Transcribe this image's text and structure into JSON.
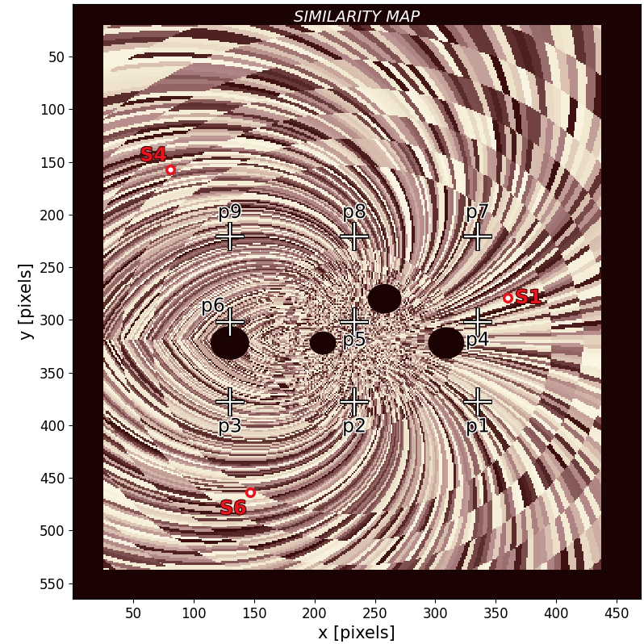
{
  "chart_data": {
    "type": "map",
    "title": "SIMILARITY MAP",
    "x_label": "x [pixels]",
    "y_label": "y [pixels]",
    "xlim": [
      0,
      470
    ],
    "ylim": [
      565,
      0
    ],
    "xticks": [
      50,
      100,
      150,
      200,
      250,
      300,
      350,
      400,
      450
    ],
    "yticks": [
      50,
      100,
      150,
      200,
      250,
      300,
      350,
      400,
      450,
      500,
      550
    ],
    "map_x": [
      25,
      437
    ],
    "map_y": [
      20,
      537
    ],
    "points": {
      "names": [
        "p1",
        "p2",
        "p3",
        "p4",
        "p5",
        "p6",
        "p7",
        "p8",
        "p9"
      ],
      "x": [
        335,
        233,
        130,
        335,
        233,
        130,
        335,
        233,
        130
      ],
      "y": [
        378,
        378,
        378,
        302,
        302,
        302,
        221,
        221,
        221
      ]
    },
    "sources": {
      "names": [
        "S1",
        "S4",
        "S6"
      ],
      "x": [
        360,
        81,
        147
      ],
      "y": [
        279,
        157,
        464
      ],
      "color": "#e8141e"
    },
    "obstacles": {
      "x": [
        130,
        207,
        258,
        309
      ],
      "y": [
        322,
        322,
        280,
        322
      ],
      "r": [
        16,
        11,
        14,
        15
      ]
    }
  }
}
